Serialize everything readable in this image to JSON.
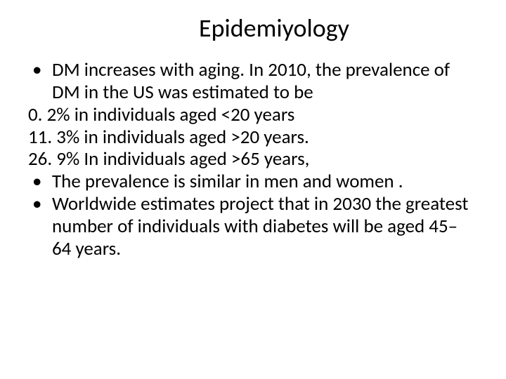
{
  "slide": {
    "title": "Epidemiyology",
    "bullets": {
      "b1": "DM increases with aging. In 2010, the prevalence of DM in the US was estimated to be",
      "f1": "0. 2% in individuals aged <20 years",
      "f2": "11. 3% in individuals aged >20 years.",
      "f3": "26. 9% In individuals aged >65 years,",
      "b2": "The prevalence is similar in men and women .",
      "b3": "Worldwide estimates project that in 2030 the greatest number of individuals with diabetes will be aged 45– 64 years."
    }
  },
  "style": {
    "background_color": "#ffffff",
    "text_color": "#000000",
    "title_fontsize": 36,
    "body_fontsize": 27,
    "font_family": "Calibri",
    "bullet_char": "•"
  }
}
